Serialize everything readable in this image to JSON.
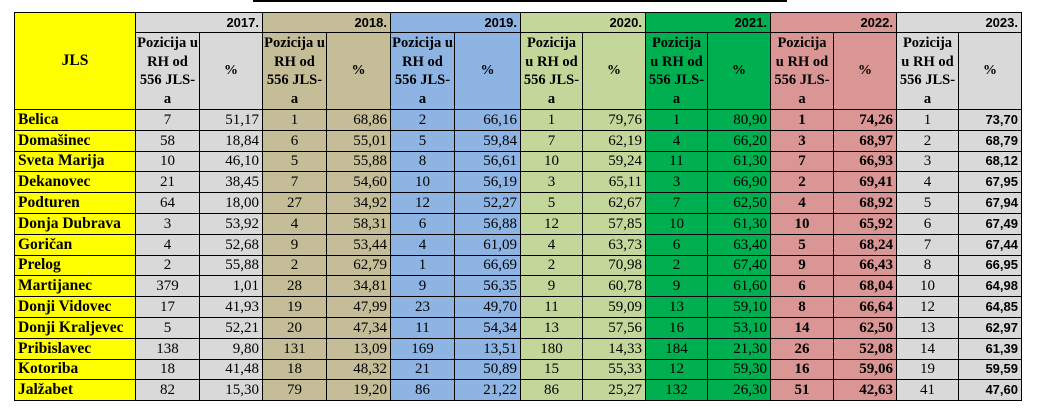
{
  "header": {
    "jls": "JLS",
    "pos_label": "Pozicija u RH od 556 JLS-a",
    "pct_label": "%"
  },
  "years": [
    "2017.",
    "2018.",
    "2019.",
    "2020.",
    "2021.",
    "2022.",
    "2023."
  ],
  "colors": {
    "jls": "#ffff00",
    "2017": "#d9d9d9",
    "2018": "#c4bd97",
    "2019": "#8db4e2",
    "2020": "#c4d79b",
    "2021": "#00b050",
    "2022": "#da9694",
    "2023": "#d9d9d9"
  },
  "rows": [
    {
      "name": "Belica",
      "v": [
        "7",
        "51,17",
        "1",
        "68,86",
        "2",
        "66,16",
        "1",
        "79,76",
        "1",
        "80,90",
        "1",
        "74,26",
        "1",
        "73,70"
      ]
    },
    {
      "name": "Domašinec",
      "v": [
        "58",
        "18,84",
        "6",
        "55,01",
        "5",
        "59,84",
        "7",
        "62,19",
        "4",
        "66,20",
        "3",
        "68,97",
        "2",
        "68,79"
      ]
    },
    {
      "name": "Sveta Marija",
      "v": [
        "10",
        "46,10",
        "5",
        "55,88",
        "8",
        "56,61",
        "10",
        "59,24",
        "11",
        "61,30",
        "7",
        "66,93",
        "3",
        "68,12"
      ]
    },
    {
      "name": "Dekanovec",
      "v": [
        "21",
        "38,45",
        "7",
        "54,60",
        "10",
        "56,19",
        "3",
        "65,11",
        "3",
        "66,90",
        "2",
        "69,41",
        "4",
        "67,95"
      ]
    },
    {
      "name": "Podturen",
      "v": [
        "64",
        "18,00",
        "27",
        "34,92",
        "12",
        "52,27",
        "5",
        "62,67",
        "7",
        "62,50",
        "4",
        "68,92",
        "5",
        "67,94"
      ]
    },
    {
      "name": "Donja Dubrava",
      "v": [
        "3",
        "53,92",
        "4",
        "58,31",
        "6",
        "56,88",
        "12",
        "57,85",
        "10",
        "61,30",
        "10",
        "65,92",
        "6",
        "67,49"
      ]
    },
    {
      "name": "Goričan",
      "v": [
        "4",
        "52,68",
        "9",
        "53,44",
        "4",
        "61,09",
        "4",
        "63,73",
        "6",
        "63,40",
        "5",
        "68,24",
        "7",
        "67,44"
      ]
    },
    {
      "name": "Prelog",
      "v": [
        "2",
        "55,88",
        "2",
        "62,79",
        "1",
        "66,69",
        "2",
        "70,98",
        "2",
        "67,40",
        "9",
        "66,43",
        "8",
        "66,95"
      ]
    },
    {
      "name": "Martijanec",
      "v": [
        "379",
        "1,01",
        "28",
        "34,81",
        "9",
        "56,35",
        "9",
        "60,78",
        "9",
        "61,60",
        "6",
        "68,04",
        "10",
        "64,98"
      ]
    },
    {
      "name": "Donji Vidovec",
      "v": [
        "17",
        "41,93",
        "19",
        "47,99",
        "23",
        "49,70",
        "11",
        "59,09",
        "13",
        "59,10",
        "8",
        "66,64",
        "12",
        "64,85"
      ]
    },
    {
      "name": "Donji Kraljevec",
      "v": [
        "5",
        "52,21",
        "20",
        "47,34",
        "11",
        "54,34",
        "13",
        "57,56",
        "16",
        "53,10",
        "14",
        "62,50",
        "13",
        "62,97"
      ]
    },
    {
      "name": "Pribislavec",
      "v": [
        "138",
        "9,80",
        "131",
        "13,09",
        "169",
        "13,51",
        "180",
        "14,33",
        "184",
        "21,30",
        "26",
        "52,08",
        "14",
        "61,39"
      ]
    },
    {
      "name": "Kotoriba",
      "v": [
        "18",
        "41,48",
        "18",
        "48,32",
        "21",
        "50,89",
        "15",
        "55,33",
        "12",
        "59,30",
        "16",
        "59,06",
        "19",
        "59,59"
      ]
    },
    {
      "name": "Jalžabet",
      "v": [
        "82",
        "15,30",
        "79",
        "19,20",
        "86",
        "21,22",
        "86",
        "25,27",
        "132",
        "26,30",
        "51",
        "42,63",
        "41",
        "47,60"
      ]
    }
  ]
}
